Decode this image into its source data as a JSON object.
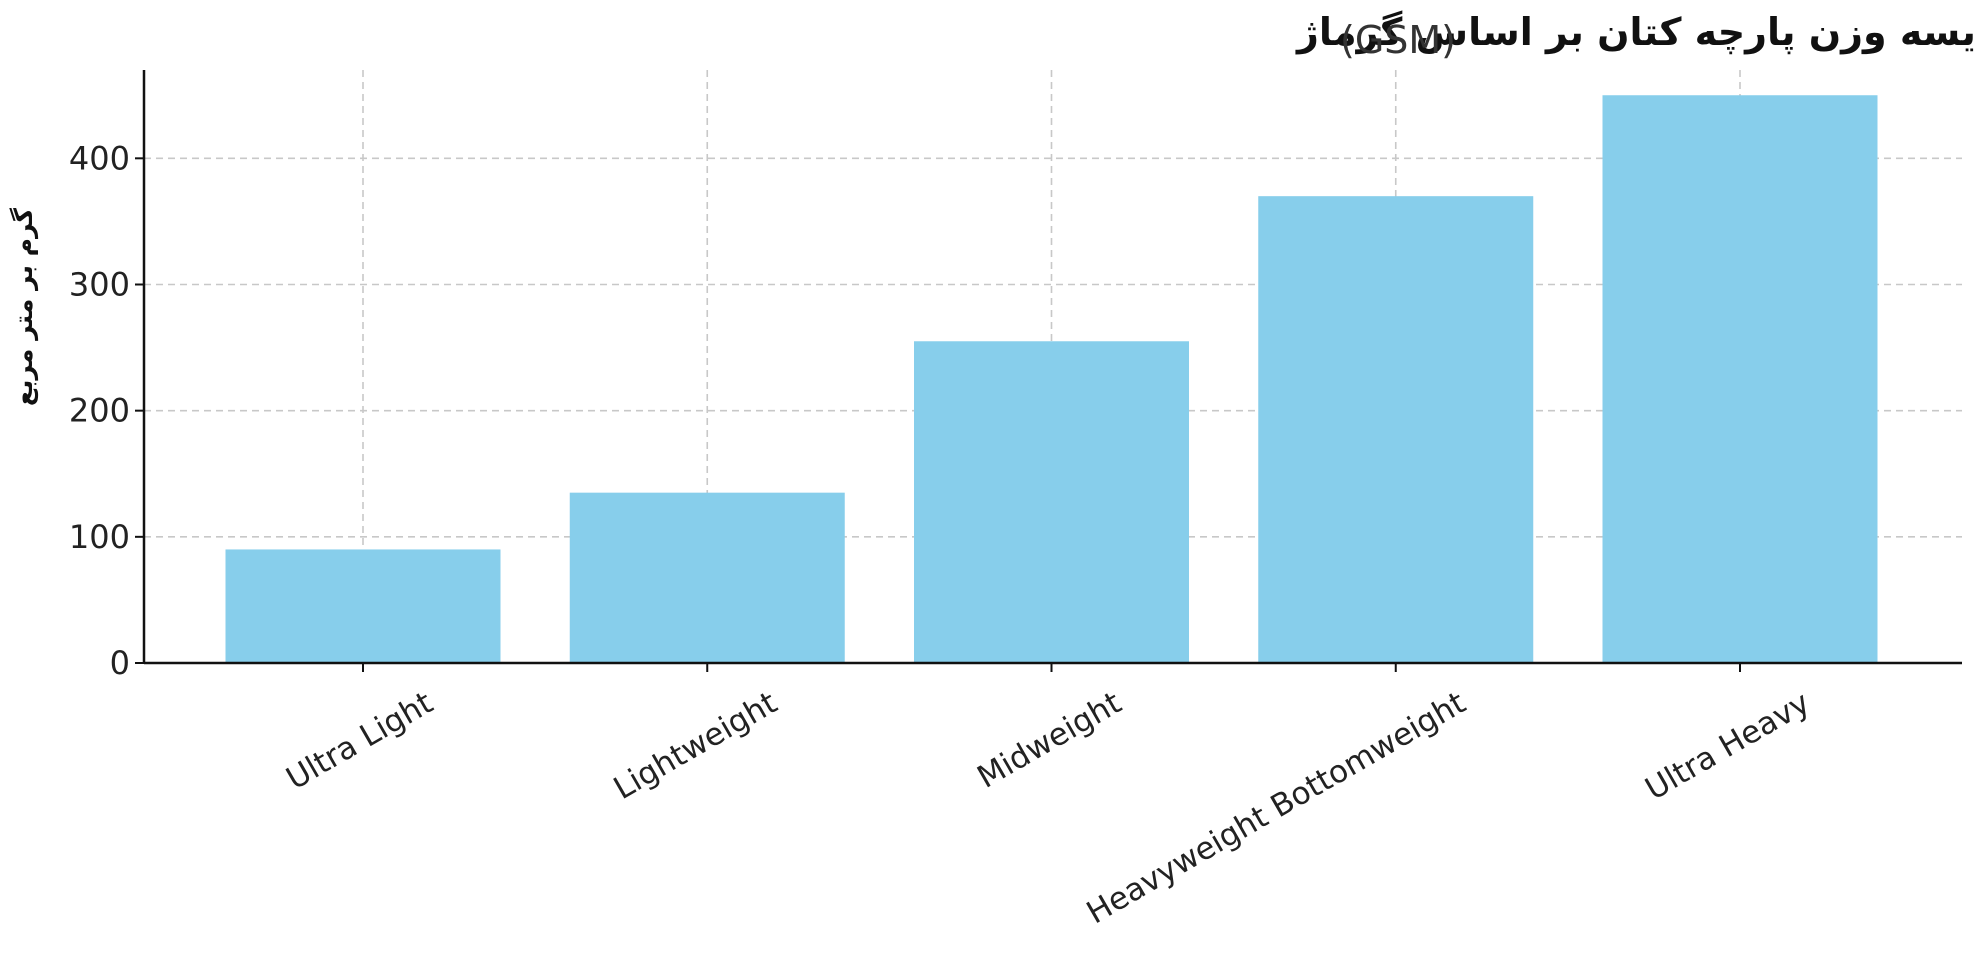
{
  "chart_data": {
    "type": "bar",
    "title": "مقایسه وزن پارچه کتان بر اساس گرماژ",
    "title_unit": "(GSM)",
    "xlabel": "",
    "ylabel": "گرم بر متر مربع",
    "categories": [
      "Ultra Light",
      "Lightweight",
      "Midweight",
      "Heavyweight Bottomweight",
      "Ultra Heavy"
    ],
    "values": [
      90,
      135,
      255,
      370,
      450
    ],
    "ylim": [
      0,
      470
    ],
    "yticks": [
      0,
      100,
      200,
      300,
      400
    ],
    "bar_color": "#87CEEB",
    "grid": true,
    "grid_style": "dashed",
    "legend": "none"
  }
}
